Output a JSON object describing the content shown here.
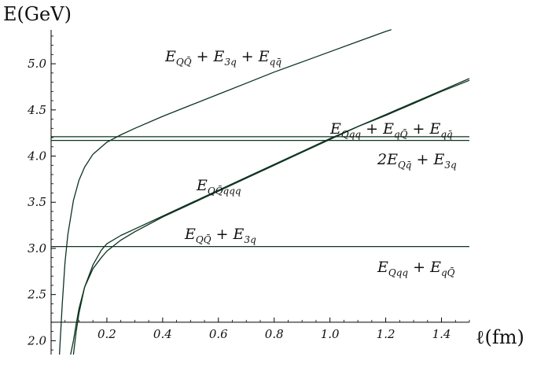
{
  "chart_data": {
    "type": "line",
    "xlabel": "ℓ(fm)",
    "ylabel": "E(GeV)",
    "xlim": [
      0.0,
      1.5
    ],
    "ylim": [
      1.85,
      5.35
    ],
    "x_ticks": [
      0.2,
      0.4,
      0.6,
      0.8,
      1.0,
      1.2,
      1.4
    ],
    "y_ticks": [
      2.0,
      2.5,
      3.0,
      3.5,
      4.0,
      4.5,
      5.0
    ],
    "x_tick_labels": [
      "0.2",
      "0.4",
      "0.6",
      "0.8",
      "1.0",
      "1.2",
      "1.4"
    ],
    "y_tick_labels": [
      "2.0",
      "2.5",
      "3.0",
      "3.5",
      "4.0",
      "4.5",
      "5.0"
    ],
    "x_axis_crossing_y": 2.2,
    "series": [
      {
        "name": "E_{QQ̄} + E_{3q} + E_{qq̄}",
        "x": [
          0.03,
          0.04,
          0.05,
          0.06,
          0.08,
          0.1,
          0.12,
          0.15,
          0.2,
          0.25,
          0.3,
          0.4,
          0.5,
          0.6,
          0.7,
          0.8,
          0.9,
          1.0,
          1.1,
          1.2,
          1.22
        ],
        "y": [
          1.85,
          2.4,
          2.85,
          3.15,
          3.52,
          3.74,
          3.88,
          4.02,
          4.15,
          4.23,
          4.3,
          4.43,
          4.55,
          4.67,
          4.79,
          4.91,
          5.02,
          5.13,
          5.24,
          5.35,
          5.37
        ]
      },
      {
        "name": "E_{QQ̄qqq}",
        "x": [
          0.08,
          0.09,
          0.1,
          0.12,
          0.15,
          0.18,
          0.2,
          0.25,
          0.3,
          0.4,
          0.5,
          0.6,
          0.7,
          0.8,
          0.9,
          1.0,
          1.1,
          1.2,
          1.3,
          1.4,
          1.5
        ],
        "y": [
          1.85,
          2.1,
          2.3,
          2.58,
          2.82,
          2.98,
          3.05,
          3.14,
          3.21,
          3.35,
          3.49,
          3.63,
          3.77,
          3.91,
          4.05,
          4.19,
          4.32,
          4.44,
          4.57,
          4.7,
          4.82
        ]
      },
      {
        "name": "E_{QQ̄} + E_{3q}",
        "x": [
          0.07,
          0.08,
          0.09,
          0.1,
          0.12,
          0.15,
          0.18,
          0.2,
          0.25,
          0.3,
          0.4,
          0.5,
          0.6,
          0.7,
          0.8,
          0.9,
          1.0,
          1.1,
          1.2,
          1.3,
          1.4,
          1.5
        ],
        "y": [
          1.85,
          2.0,
          2.18,
          2.35,
          2.58,
          2.78,
          2.9,
          2.97,
          3.09,
          3.18,
          3.34,
          3.48,
          3.62,
          3.76,
          3.9,
          4.04,
          4.18,
          4.32,
          4.45,
          4.58,
          4.71,
          4.84
        ]
      },
      {
        "name": "E_{Qqq} + E_{qQ̄} + E_{qq̄}",
        "x": [
          0.0,
          1.5
        ],
        "y": [
          4.21,
          4.21
        ]
      },
      {
        "name": "2E_{Qq̄} + E_{3q}",
        "x": [
          0.0,
          1.5
        ],
        "y": [
          4.17,
          4.17
        ]
      },
      {
        "name": "E_{Qqq} + E_{qQ̄}",
        "x": [
          0.0,
          1.5
        ],
        "y": [
          3.02,
          3.02
        ]
      }
    ],
    "colors": {
      "curve": "#0d3320",
      "axis": "#000000"
    }
  }
}
